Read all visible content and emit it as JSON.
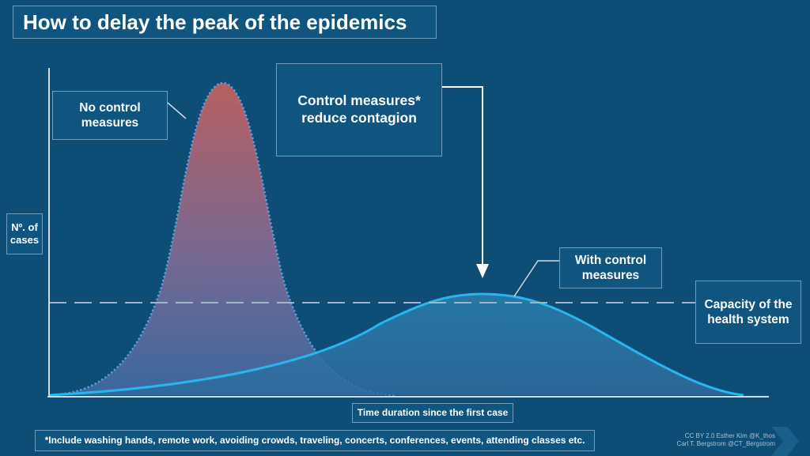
{
  "title": "How to delay the peak of the epidemics",
  "labels": {
    "no_control": "No control measures",
    "control_reduce": "Control measures* reduce contagion",
    "with_control": "With control measures",
    "capacity": "Capacity of the health system",
    "y_axis": "Nº. of cases",
    "x_axis": "Time duration since the first case"
  },
  "footnote": "*Include washing hands, remote work, avoiding crowds, traveling, concerts, conferences, events, attending classes etc.",
  "credits": {
    "line1": "CC BY 2.0  Esther Kim  @K_thos",
    "line2": "Carl T. Bergstrom  @CT_Bergstrom"
  },
  "colors": {
    "background": "#0d4d76",
    "no_control_top": "#c0605f",
    "no_control_bottom": "#3d6aa0",
    "with_control_line": "#29b6ef",
    "capacity_line": "#9fb6c7",
    "box_border": "#6f9fbf"
  }
}
